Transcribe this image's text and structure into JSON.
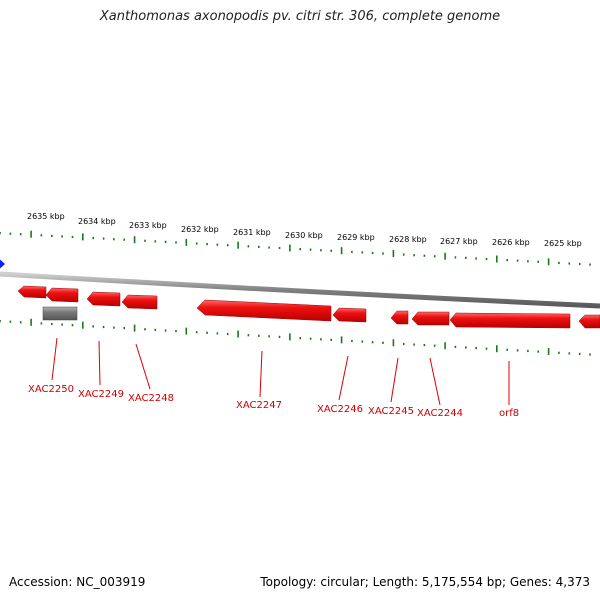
{
  "header": {
    "title": "Xanthomonas axonopodis pv. citri str. 306, complete genome"
  },
  "footer": {
    "accession": "Accession: NC_003919",
    "summary": "Topology: circular; Length: 5,175,554 bp; Genes: 4,373"
  },
  "scale_labels": [
    "2635 kbp",
    "2634 kbp",
    "2633 kbp",
    "2632 kbp",
    "2631 kbp",
    "2630 kbp",
    "2629 kbp",
    "2628 kbp",
    "2627 kbp",
    "2626 kbp",
    "2625 kbp"
  ],
  "genes": [
    {
      "label": "XAC2250",
      "color": "#dd0000"
    },
    {
      "label": "XAC2249",
      "color": "#dd0000"
    },
    {
      "label": "XAC2248",
      "color": "#dd0000"
    },
    {
      "label": "XAC2247",
      "color": "#dd0000"
    },
    {
      "label": "XAC2246",
      "color": "#dd0000"
    },
    {
      "label": "XAC2245",
      "color": "#dd0000"
    },
    {
      "label": "XAC2244",
      "color": "#dd0000"
    },
    {
      "label": "orf8",
      "color": "#dd0000"
    }
  ],
  "colors": {
    "gene_fill": "#ee1111",
    "gene_top": "#ff7777",
    "gene_label": "#cc0000",
    "tick": "#1a7a1a",
    "backbone": "#8a8a8a",
    "other_feature": "#777777",
    "origin_marker": "#1020ff"
  }
}
